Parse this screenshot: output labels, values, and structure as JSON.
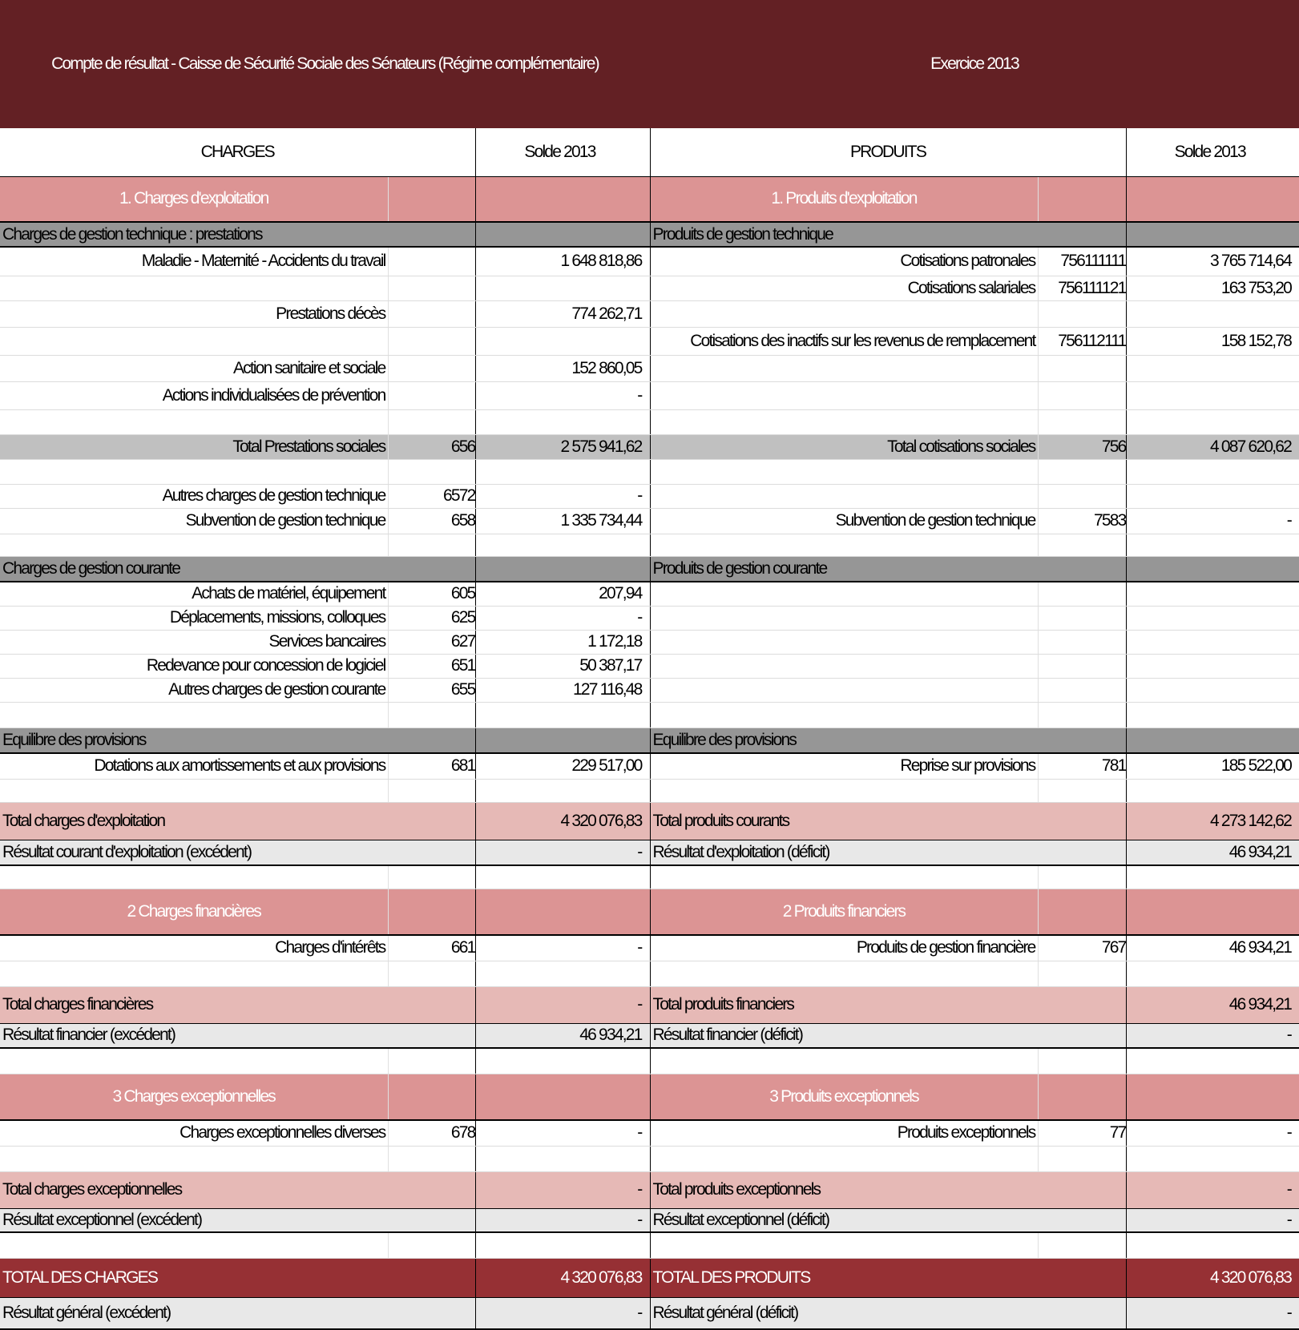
{
  "title": {
    "left": "Compte de résultat - Caisse de Sécurité Sociale des Sénateurs (Régime complémentaire)",
    "right": "Exercice 2013"
  },
  "header": {
    "charges": "CHARGES",
    "solde_left": "Solde 2013",
    "produits": "PRODUITS",
    "solde_right": "Solde 2013"
  },
  "colors": {
    "title": "#632024",
    "section": "#dc9494",
    "subheader": "#969696",
    "total": "#e6b9b6",
    "grand_total": "#963034"
  },
  "rows": [
    {
      "type": "section",
      "l": [
        "1. Charges d'exploitation",
        "",
        ""
      ],
      "r": [
        "1. Produits d'exploitation",
        "",
        ""
      ]
    },
    {
      "type": "sub",
      "l": [
        "Charges de gestion technique : prestations",
        "",
        ""
      ],
      "r": [
        "Produits de gestion technique",
        "",
        ""
      ]
    },
    {
      "type": "detail",
      "l": [
        "Maladie - Maternité - Accidents du travail",
        "",
        "1 648 818,86"
      ],
      "r": [
        "Cotisations patronales",
        "756111111",
        "3 765 714,64"
      ]
    },
    {
      "type": "detail",
      "l": [
        "",
        "",
        ""
      ],
      "r": [
        "Cotisations salariales",
        "756111121",
        "163 753,20"
      ]
    },
    {
      "type": "detail",
      "l": [
        "Prestations décès",
        "",
        "774 262,71"
      ],
      "r": [
        "",
        "",
        ""
      ]
    },
    {
      "type": "detail",
      "l": [
        "",
        "",
        ""
      ],
      "r": [
        "Cotisations des inactifs sur les revenus de remplacement",
        "756112111",
        "158 152,78"
      ]
    },
    {
      "type": "detail",
      "l": [
        "Action sanitaire et sociale",
        "",
        "152 860,05"
      ],
      "r": [
        "",
        "",
        ""
      ]
    },
    {
      "type": "detail",
      "l": [
        "Actions individualisées de prévention",
        "",
        "-"
      ],
      "r": [
        "",
        "",
        ""
      ]
    },
    {
      "type": "detail",
      "l": [
        "",
        "",
        ""
      ],
      "r": [
        "",
        "",
        ""
      ]
    },
    {
      "type": "gtotal",
      "l": [
        "Total Prestations sociales",
        "656",
        "2 575 941,62"
      ],
      "r": [
        "Total cotisations sociales",
        "756",
        "4 087 620,62"
      ]
    },
    {
      "type": "detail",
      "l": [
        "",
        "",
        ""
      ],
      "r": [
        "",
        "",
        ""
      ]
    },
    {
      "type": "detail",
      "l": [
        "Autres charges de gestion technique",
        "6572",
        "-"
      ],
      "r": [
        "",
        "",
        ""
      ]
    },
    {
      "type": "detail",
      "l": [
        "Subvention de gestion technique",
        "658",
        "1 335 734,44"
      ],
      "r": [
        "Subvention de gestion technique",
        "7583",
        "-"
      ]
    },
    {
      "type": "detail",
      "l": [
        "",
        "",
        ""
      ],
      "r": [
        "",
        "",
        ""
      ]
    },
    {
      "type": "sub",
      "l": [
        "Charges de gestion courante",
        "",
        ""
      ],
      "r": [
        "Produits de gestion courante",
        "",
        ""
      ]
    },
    {
      "type": "detail",
      "l": [
        "Achats de matériel, équipement",
        "605",
        "207,94"
      ],
      "r": [
        "",
        "",
        ""
      ]
    },
    {
      "type": "detail",
      "l": [
        "Déplacements, missions, colloques",
        "625",
        "-"
      ],
      "r": [
        "",
        "",
        ""
      ]
    },
    {
      "type": "detail",
      "l": [
        "Services bancaires",
        "627",
        "1 172,18"
      ],
      "r": [
        "",
        "",
        ""
      ]
    },
    {
      "type": "detail",
      "l": [
        "Redevance pour concession de logiciel",
        "651",
        "50 387,17"
      ],
      "r": [
        "",
        "",
        ""
      ]
    },
    {
      "type": "detail",
      "l": [
        "Autres charges de gestion courante",
        "655",
        "127 116,48"
      ],
      "r": [
        "",
        "",
        ""
      ]
    },
    {
      "type": "detail",
      "l": [
        "",
        "",
        ""
      ],
      "r": [
        "",
        "",
        ""
      ]
    },
    {
      "type": "sub",
      "l": [
        "Equilibre des provisions",
        "",
        ""
      ],
      "r": [
        "Equilibre des provisions",
        "",
        ""
      ]
    },
    {
      "type": "detail",
      "l": [
        "Dotations aux amortissements et aux provisions",
        "681",
        "229 517,00"
      ],
      "r": [
        "Reprise sur provisions",
        "781",
        "185 522,00"
      ]
    },
    {
      "type": "detail",
      "l": [
        "",
        "",
        ""
      ],
      "r": [
        "",
        "",
        ""
      ]
    },
    {
      "type": "total",
      "l": [
        "Total charges d'exploitation",
        "",
        "4 320 076,83"
      ],
      "r": [
        "Total produits courants",
        "",
        "4 273 142,62"
      ]
    },
    {
      "type": "result",
      "l": [
        "Résultat courant d'exploitation (excédent)",
        "",
        "-"
      ],
      "r": [
        "Résultat d'exploitation (déficit)",
        "",
        "46 934,21"
      ]
    },
    {
      "type": "detail",
      "l": [
        "",
        "",
        ""
      ],
      "r": [
        "",
        "",
        ""
      ]
    },
    {
      "type": "section",
      "l": [
        "2 Charges financières",
        "",
        ""
      ],
      "r": [
        "2 Produits financiers",
        "",
        ""
      ]
    },
    {
      "type": "detail",
      "l": [
        "Charges d'intérêts",
        "661",
        "-"
      ],
      "r": [
        "Produits de gestion financière",
        "767",
        "46 934,21"
      ]
    },
    {
      "type": "detail",
      "l": [
        "",
        "",
        ""
      ],
      "r": [
        "",
        "",
        ""
      ]
    },
    {
      "type": "total",
      "l": [
        "Total charges financières",
        "",
        "-"
      ],
      "r": [
        "Total produits financiers",
        "",
        "46 934,21"
      ]
    },
    {
      "type": "result",
      "l": [
        "Résultat financier (excédent)",
        "",
        "46 934,21"
      ],
      "r": [
        "Résultat financier (déficit)",
        "",
        "-"
      ]
    },
    {
      "type": "detail",
      "l": [
        "",
        "",
        ""
      ],
      "r": [
        "",
        "",
        ""
      ]
    },
    {
      "type": "section",
      "l": [
        "3 Charges exceptionnelles",
        "",
        ""
      ],
      "r": [
        "3 Produits exceptionnels",
        "",
        ""
      ]
    },
    {
      "type": "detail",
      "l": [
        "Charges exceptionnelles diverses",
        "678",
        "-"
      ],
      "r": [
        "Produits exceptionnels",
        "77",
        "-"
      ]
    },
    {
      "type": "detail",
      "l": [
        "",
        "",
        ""
      ],
      "r": [
        "",
        "",
        ""
      ]
    },
    {
      "type": "total",
      "l": [
        "Total charges exceptionnelles",
        "",
        "-"
      ],
      "r": [
        "Total produits exceptionnels",
        "",
        "-"
      ]
    },
    {
      "type": "result",
      "l": [
        "Résultat exceptionnel (excédent)",
        "",
        "-"
      ],
      "r": [
        "Résultat exceptionnel (déficit)",
        "",
        "-"
      ]
    },
    {
      "type": "detail",
      "l": [
        "",
        "",
        ""
      ],
      "r": [
        "",
        "",
        ""
      ]
    },
    {
      "type": "grand",
      "l": [
        "TOTAL DES CHARGES",
        "",
        "4 320 076,83"
      ],
      "r": [
        "TOTAL DES PRODUITS",
        "",
        "4 320 076,83"
      ]
    },
    {
      "type": "result",
      "l": [
        "Résultat général (excédent)",
        "",
        "-"
      ],
      "r": [
        "Résultat général (déficit)",
        "",
        "-"
      ]
    }
  ]
}
